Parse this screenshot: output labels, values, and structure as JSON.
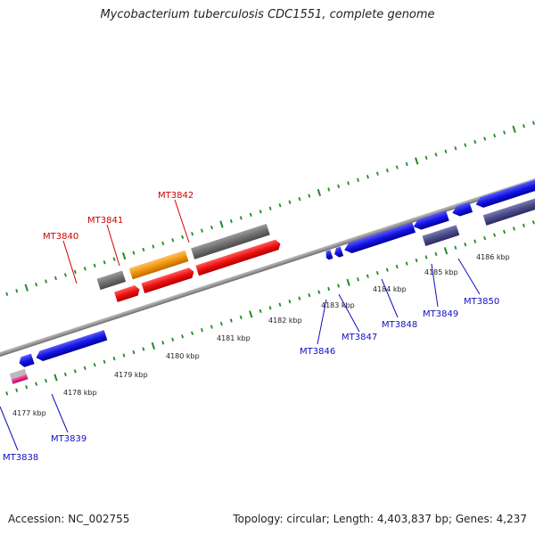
{
  "header": {
    "title": "Mycobacterium tuberculosis CDC1551, complete genome"
  },
  "footer": {
    "accession": "Accession: NC_002755",
    "summary": "Topology: circular; Length: 4,403,837 bp; Genes: 4,237"
  },
  "map": {
    "tick_labels": [
      "4177 kbp",
      "4178 kbp",
      "4179 kbp",
      "4180 kbp",
      "4181 kbp",
      "4182 kbp",
      "4183 kbp",
      "4184 kbp",
      "4185 kbp",
      "4186 kbp"
    ],
    "forward_genes": [
      "MT3840",
      "MT3841",
      "MT3842"
    ],
    "reverse_genes": [
      "MT3838",
      "MT3839",
      "MT3846",
      "MT3847",
      "MT3848",
      "MT3849",
      "MT3850"
    ],
    "colors": {
      "forward_label": "#d00000",
      "reverse_label": "#1010c0",
      "tick": "#228b22",
      "backbone": "#888888",
      "gene_red": "#ee1111",
      "gene_blue": "#1515e0",
      "gene_orange": "#f0960f",
      "gene_gray": "#707070",
      "gene_slate": "#4a4a8a",
      "gene_pink": "#e0308a"
    }
  }
}
